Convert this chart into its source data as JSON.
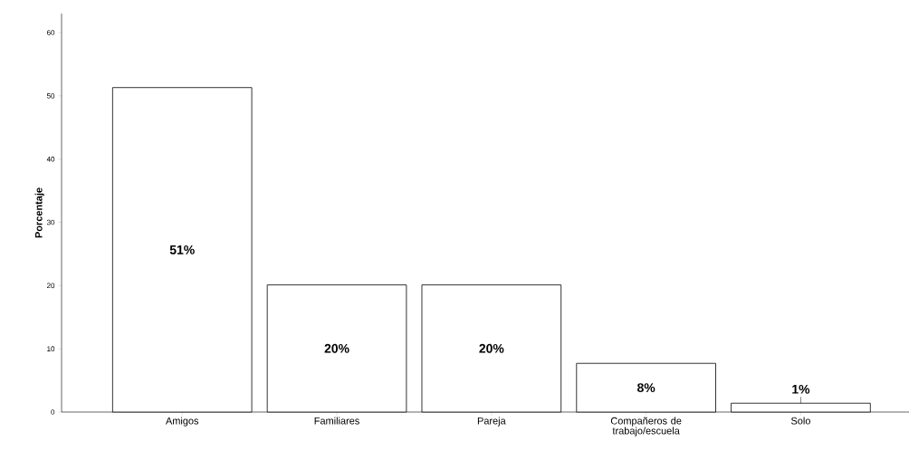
{
  "chart_data": {
    "type": "bar",
    "ylabel": "Porcentaje",
    "categories": [
      "Amigos",
      "Familiares",
      "Pareja",
      "Compañeros de trabajo/escuela",
      "Solo"
    ],
    "values": [
      51.3,
      20.1,
      20.1,
      7.7,
      1.4
    ],
    "value_labels": [
      "51%",
      "20%",
      "20%",
      "8%",
      "1%"
    ],
    "color": "#ffffff",
    "ylim": [
      0,
      63
    ],
    "yticks": [
      0,
      10,
      20,
      30,
      40,
      50,
      60
    ],
    "grid": false
  }
}
